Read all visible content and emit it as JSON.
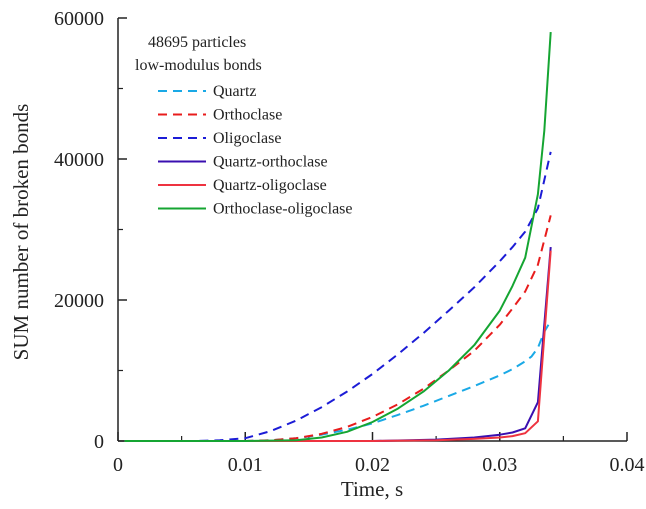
{
  "chart_data": {
    "type": "line",
    "xlabel": "Time, s",
    "ylabel": "SUM number of broken bonds",
    "xlim": [
      0,
      0.04
    ],
    "ylim": [
      0,
      60000
    ],
    "x_ticks": [
      0,
      0.01,
      0.02,
      0.03,
      0.04
    ],
    "x_tick_labels": [
      "0",
      "0.01",
      "0.02",
      "0.03",
      "0.04"
    ],
    "y_ticks": [
      0,
      20000,
      40000,
      60000
    ],
    "y_tick_labels": [
      "0",
      "20000",
      "40000",
      "60000"
    ],
    "grid": false,
    "legend_placement": "top-left",
    "legend_header": [
      "48695 particles",
      "low-modulus bonds"
    ],
    "series": [
      {
        "name": "Quartz",
        "color": "#1aa9e6",
        "dash": "dashed",
        "points": [
          [
            0.0005,
            0
          ],
          [
            0.005,
            0
          ],
          [
            0.01,
            0
          ],
          [
            0.012,
            100
          ],
          [
            0.014,
            400
          ],
          [
            0.016,
            900
          ],
          [
            0.018,
            1600
          ],
          [
            0.02,
            2500
          ],
          [
            0.022,
            3700
          ],
          [
            0.024,
            5000
          ],
          [
            0.026,
            6400
          ],
          [
            0.028,
            7800
          ],
          [
            0.03,
            9300
          ],
          [
            0.031,
            10200
          ],
          [
            0.032,
            11300
          ],
          [
            0.0325,
            12000
          ],
          [
            0.033,
            13200
          ],
          [
            0.0335,
            15500
          ],
          [
            0.034,
            17000
          ]
        ]
      },
      {
        "name": "Orthoclase",
        "color": "#e81c1c",
        "dash": "dashed",
        "points": [
          [
            0.0005,
            0
          ],
          [
            0.005,
            0
          ],
          [
            0.01,
            0
          ],
          [
            0.012,
            100
          ],
          [
            0.014,
            400
          ],
          [
            0.016,
            1000
          ],
          [
            0.018,
            2000
          ],
          [
            0.02,
            3400
          ],
          [
            0.022,
            5200
          ],
          [
            0.024,
            7400
          ],
          [
            0.026,
            10000
          ],
          [
            0.028,
            12800
          ],
          [
            0.03,
            16500
          ],
          [
            0.031,
            18800
          ],
          [
            0.032,
            21200
          ],
          [
            0.033,
            25000
          ],
          [
            0.0335,
            28500
          ],
          [
            0.034,
            32000
          ]
        ]
      },
      {
        "name": "Oligoclase",
        "color": "#1c1cd6",
        "dash": "dashed",
        "points": [
          [
            0.0005,
            0
          ],
          [
            0.006,
            0
          ],
          [
            0.008,
            100
          ],
          [
            0.01,
            400
          ],
          [
            0.012,
            1400
          ],
          [
            0.014,
            2900
          ],
          [
            0.016,
            4800
          ],
          [
            0.018,
            7000
          ],
          [
            0.02,
            9500
          ],
          [
            0.022,
            12300
          ],
          [
            0.024,
            15300
          ],
          [
            0.026,
            18500
          ],
          [
            0.028,
            21800
          ],
          [
            0.03,
            25500
          ],
          [
            0.031,
            27500
          ],
          [
            0.032,
            29700
          ],
          [
            0.033,
            33000
          ],
          [
            0.0335,
            37000
          ],
          [
            0.034,
            41000
          ]
        ]
      },
      {
        "name": "Quartz-orthoclase",
        "color": "#3a0fb0",
        "dash": "solid",
        "points": [
          [
            0.0005,
            0
          ],
          [
            0.01,
            0
          ],
          [
            0.015,
            0
          ],
          [
            0.02,
            0
          ],
          [
            0.025,
            200
          ],
          [
            0.028,
            500
          ],
          [
            0.03,
            900
          ],
          [
            0.031,
            1200
          ],
          [
            0.032,
            1800
          ],
          [
            0.033,
            5500
          ],
          [
            0.034,
            27500
          ]
        ]
      },
      {
        "name": "Quartz-oligoclase",
        "color": "#ee3340",
        "dash": "solid",
        "points": [
          [
            0.0005,
            0
          ],
          [
            0.01,
            0
          ],
          [
            0.015,
            0
          ],
          [
            0.02,
            0
          ],
          [
            0.025,
            100
          ],
          [
            0.028,
            300
          ],
          [
            0.03,
            500
          ],
          [
            0.031,
            700
          ],
          [
            0.032,
            1100
          ],
          [
            0.033,
            2800
          ],
          [
            0.034,
            27000
          ]
        ]
      },
      {
        "name": "Orthoclase-oligoclase",
        "color": "#15a532",
        "dash": "solid",
        "points": [
          [
            0.0005,
            0
          ],
          [
            0.01,
            0
          ],
          [
            0.014,
            100
          ],
          [
            0.016,
            500
          ],
          [
            0.018,
            1300
          ],
          [
            0.02,
            2700
          ],
          [
            0.022,
            4600
          ],
          [
            0.024,
            7000
          ],
          [
            0.026,
            10000
          ],
          [
            0.028,
            13600
          ],
          [
            0.03,
            18500
          ],
          [
            0.031,
            22000
          ],
          [
            0.032,
            26000
          ],
          [
            0.033,
            35000
          ],
          [
            0.0335,
            44000
          ],
          [
            0.034,
            58000
          ]
        ]
      }
    ]
  }
}
